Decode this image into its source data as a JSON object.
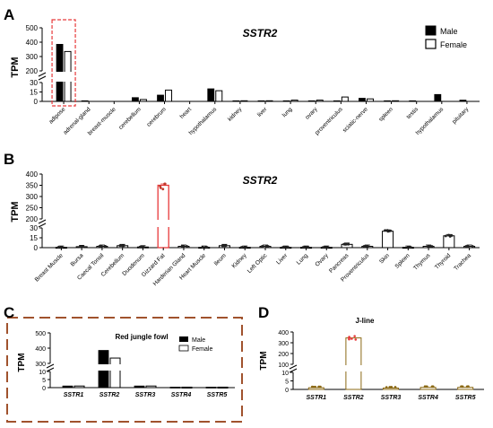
{
  "chart_data": [
    {
      "panel": "A",
      "type": "bar",
      "title": "SSTR2",
      "ylabel": "TPM",
      "yticks_lower": [
        0,
        15,
        30
      ],
      "yticks_upper": [
        200,
        300,
        400,
        500
      ],
      "ylim": [
        0,
        500
      ],
      "categories": [
        "adipose",
        "adrenal-gland",
        "breast-muscle",
        "cerebellum",
        "cerebrum",
        "heart",
        "hypothalamus",
        "kidney",
        "liver",
        "lung",
        "ovary",
        "proventriculus",
        "sciatic-nerve",
        "spleen",
        "testis",
        "hypothalamus",
        "pituitary"
      ],
      "series": [
        {
          "name": "Male",
          "values": [
            385,
            1,
            0,
            6,
            10,
            0,
            20,
            1,
            1,
            1,
            1,
            1,
            5,
            1,
            1,
            11,
            2
          ]
        },
        {
          "name": "Female",
          "values": [
            335,
            null,
            null,
            3,
            18,
            null,
            17,
            1,
            1,
            2,
            2,
            7,
            4,
            1,
            null,
            null,
            null
          ]
        }
      ],
      "legend_position": "top-right",
      "annotation": "highlight box around adipose",
      "colors": {
        "male": "#000000",
        "female": "#ffffff",
        "highlight": "#e8393a"
      }
    },
    {
      "panel": "B",
      "type": "bar",
      "title": "SSTR2",
      "ylabel": "TPM",
      "yticks_lower": [
        0,
        15,
        30
      ],
      "yticks_upper": [
        200,
        250,
        300,
        350,
        400
      ],
      "ylim": [
        0,
        400
      ],
      "categories": [
        "Breast Muscle",
        "Bursa",
        "Caecal Tonsil",
        "Cerebellum",
        "Duodenum",
        "Gizzard Fat",
        "Harderian Gland",
        "Heart Muscle",
        "Ileum",
        "Kidney",
        "Left Optic",
        "Liver",
        "Lung",
        "Ovary",
        "Pancreas",
        "Proventriculus",
        "Skin",
        "Spleen",
        "Thymus",
        "Thyroid",
        "Trachea"
      ],
      "values": [
        0.5,
        1.5,
        2,
        3,
        1,
        350,
        2,
        0.5,
        3,
        0.5,
        2,
        0.5,
        0.5,
        0.5,
        5,
        2,
        25,
        0.5,
        2,
        18,
        2
      ],
      "highlight_index": 5,
      "colors": {
        "bar": "#000000",
        "highlight": "#e8393a",
        "points": "#c0392b"
      }
    },
    {
      "panel": "C",
      "type": "bar",
      "title": "Red jungle fowl",
      "ylabel": "TPM",
      "yticks_lower": [
        0,
        5,
        10
      ],
      "yticks_upper": [
        300,
        400,
        500
      ],
      "ylim": [
        0,
        500
      ],
      "categories": [
        "SSTR1",
        "SSTR2",
        "SSTR3",
        "SSTR4",
        "SSTR5"
      ],
      "series": [
        {
          "name": "Male",
          "values": [
            1,
            385,
            1,
            0.3,
            0.3
          ]
        },
        {
          "name": "Female",
          "values": [
            1,
            335,
            1,
            0.3,
            0.3
          ]
        }
      ],
      "legend_position": "top-right",
      "colors": {
        "frame": "#a0522d"
      }
    },
    {
      "panel": "D",
      "type": "bar",
      "title": "J-line",
      "ylabel": "TPM",
      "yticks_lower": [
        0,
        5,
        10
      ],
      "yticks_upper": [
        100,
        200,
        300,
        400
      ],
      "ylim": [
        0,
        400
      ],
      "categories": [
        "SSTR1",
        "SSTR2",
        "SSTR3",
        "SSTR4",
        "SSTR5"
      ],
      "values": [
        1,
        345,
        0.8,
        1.2,
        1.2
      ],
      "colors": {
        "bar": "#8b6914",
        "highlight": "#e8393a"
      }
    }
  ]
}
